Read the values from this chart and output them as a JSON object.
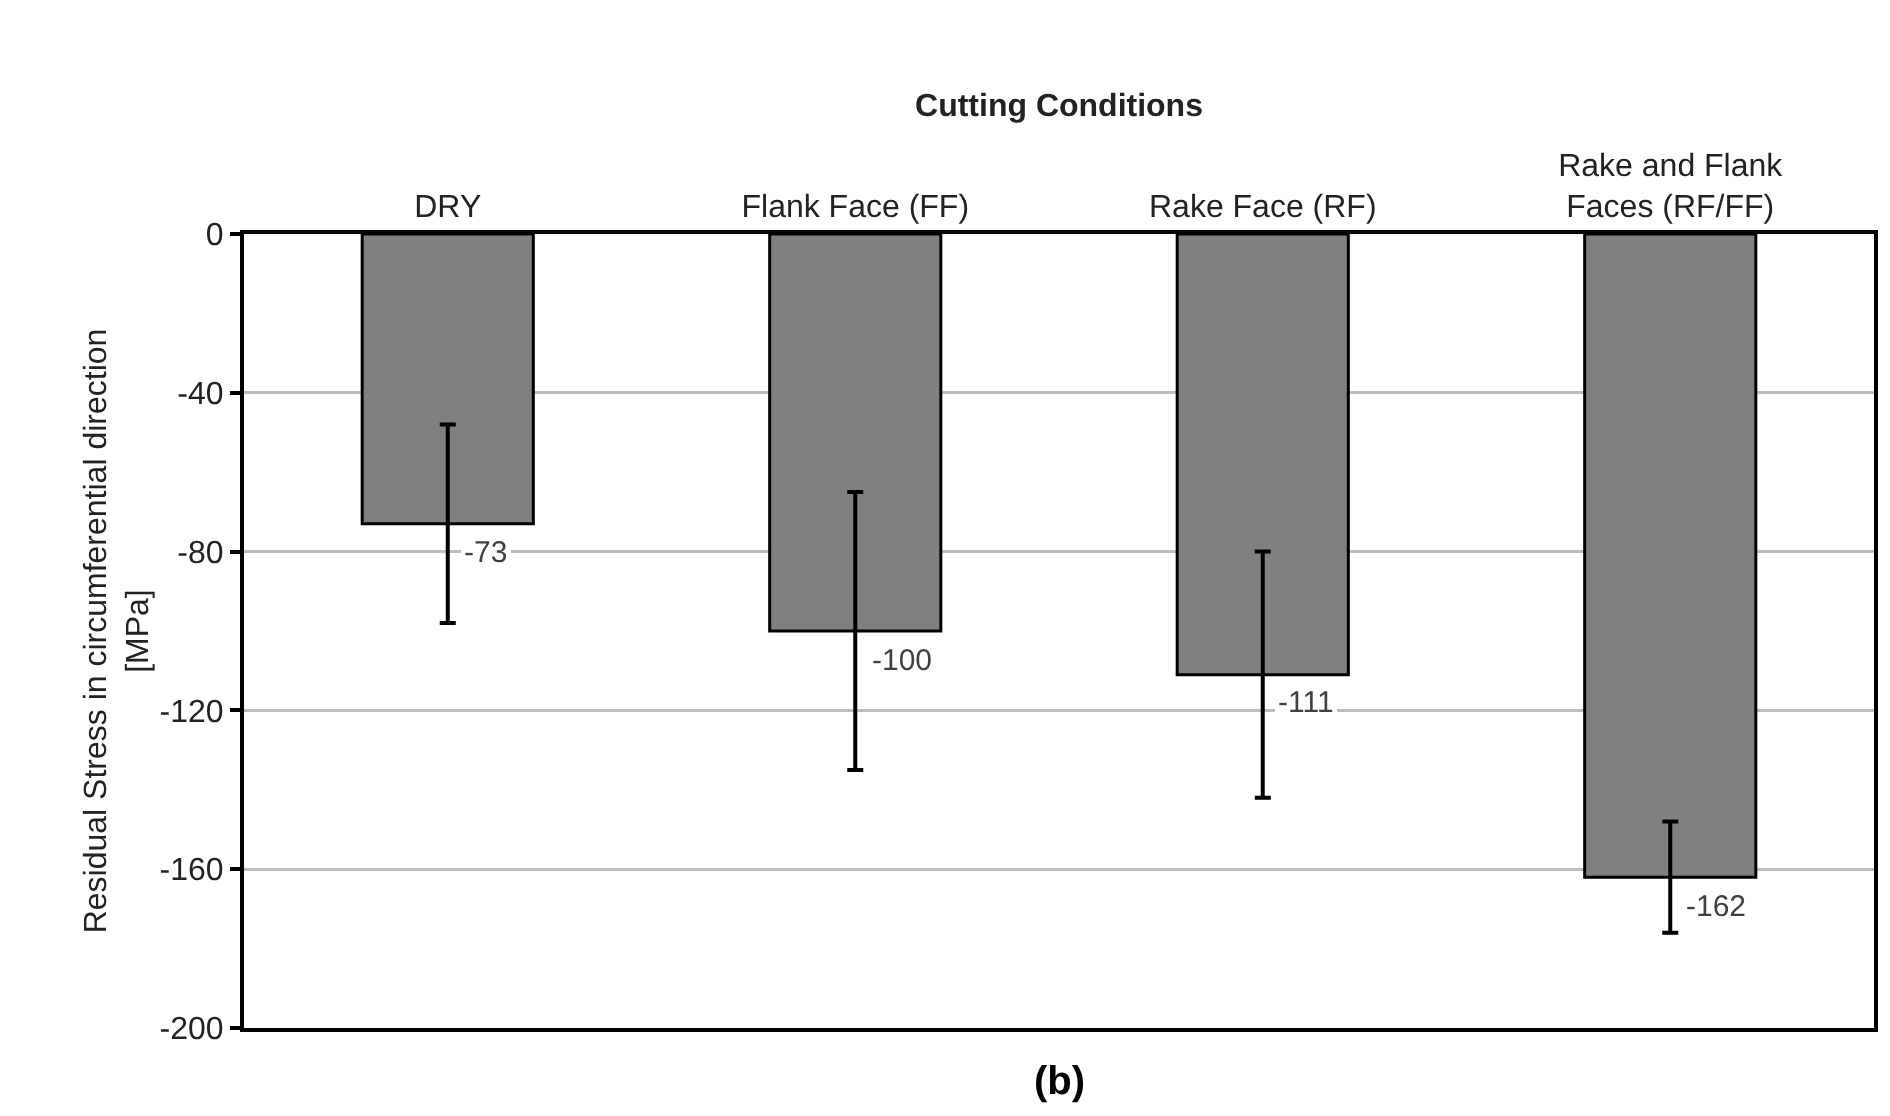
{
  "chart_data": {
    "type": "bar",
    "xlabel": "Cutting Conditions",
    "ylabel": "Residual Stress in circumferential direction [MPa]",
    "categories": [
      "DRY",
      "Flank Face (FF)",
      "Rake Face (RF)",
      "Rake and Flank Faces (RF/FF)"
    ],
    "values": [
      -73,
      -100,
      -111,
      -162
    ],
    "errors": [
      25,
      35,
      31,
      14
    ],
    "color": "#808080",
    "ylim": [
      -200,
      0
    ],
    "yticks": [
      -200,
      -160,
      -120,
      -80,
      -40,
      0
    ],
    "grid": "y",
    "data_labels": true,
    "annotations": [
      "(b)"
    ]
  }
}
